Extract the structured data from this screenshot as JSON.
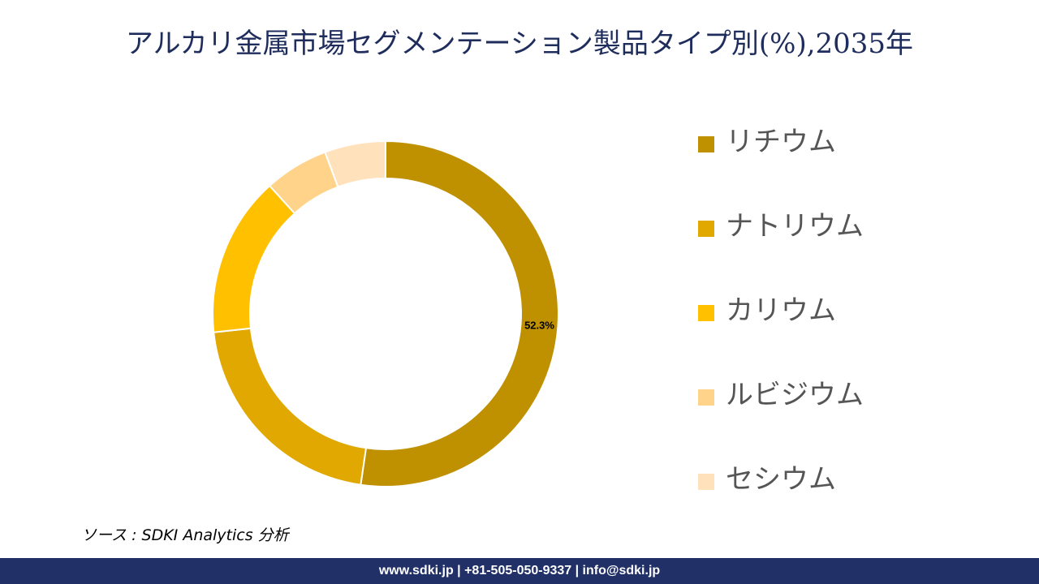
{
  "title": "アルカリ金属市場セグメンテーション製品タイプ別(%),2035年",
  "chart_data": {
    "type": "pie",
    "donut": true,
    "categories": [
      "リチウム",
      "ナトリウム",
      "カリウム",
      "ルビジウム",
      "セシウム"
    ],
    "values": [
      52.3,
      21.0,
      15.0,
      6.0,
      5.7
    ],
    "colors": [
      "#bf9000",
      "#e0a800",
      "#ffc000",
      "#ffd38a",
      "#ffe2bc"
    ],
    "data_labels": [
      "52.3%",
      "",
      "",
      "",
      ""
    ],
    "legend_position": "right"
  },
  "source": "ソース : SDKI Analytics 分析",
  "footer": "www.sdki.jp | +81-505-050-9337 | info@sdki.jp"
}
